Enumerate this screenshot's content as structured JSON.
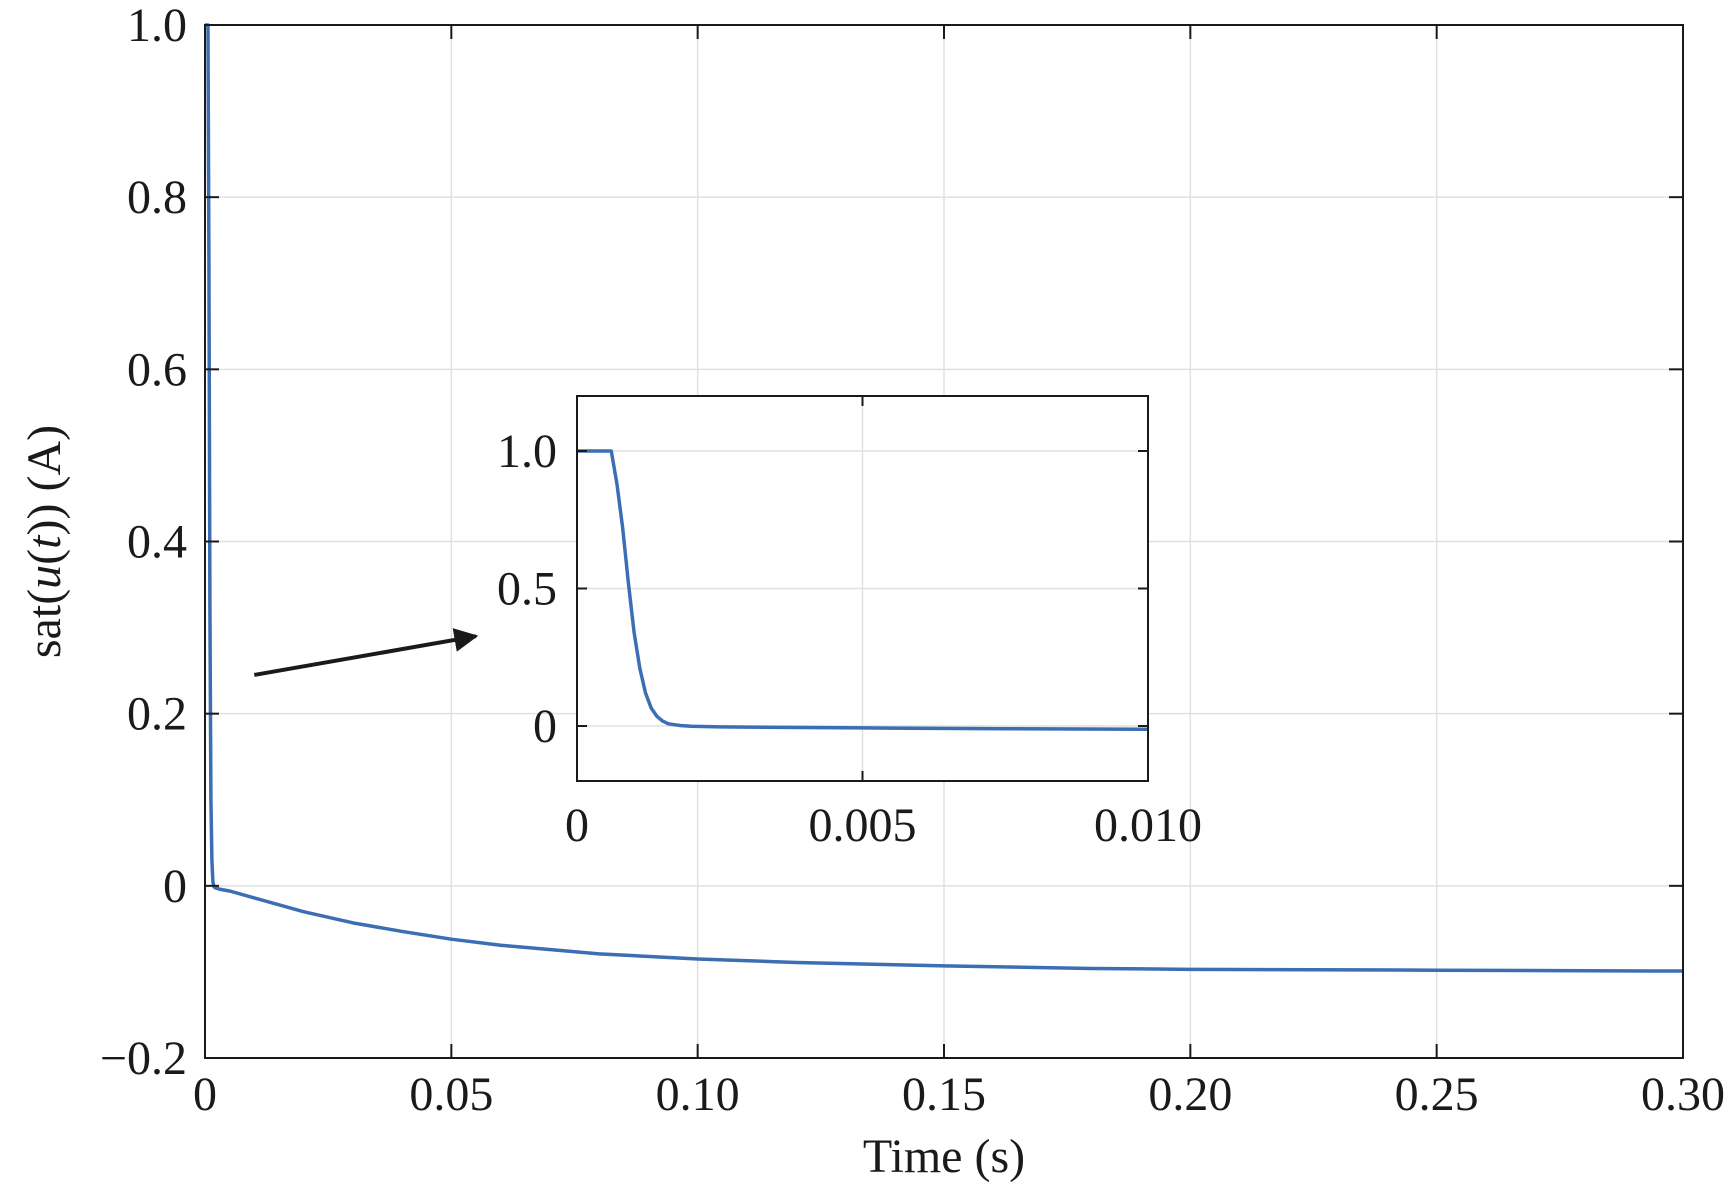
{
  "chart_data": {
    "main": {
      "type": "line",
      "xlabel": "Time (s)",
      "ylabel": {
        "prefix": "sat(",
        "var": "u",
        "open": "(",
        "arg": "t",
        "close": "))",
        "unit": " (A)"
      },
      "xlim": [
        0,
        0.3
      ],
      "ylim": [
        -0.2,
        1.0
      ],
      "xticks": [
        0,
        0.05,
        0.1,
        0.15,
        0.2,
        0.25,
        0.3
      ],
      "xtick_labels": [
        "0",
        "0.05",
        "0.10",
        "0.15",
        "0.20",
        "0.25",
        "0.30"
      ],
      "yticks": [
        -0.2,
        0,
        0.2,
        0.4,
        0.6,
        0.8,
        1.0
      ],
      "ytick_labels": [
        "−0.2",
        "0",
        "0.2",
        "0.4",
        "0.6",
        "0.8",
        "1.0"
      ],
      "grid": true,
      "series": [
        {
          "color": "#3c6eb4",
          "x": [
            0,
            0.0006,
            0.0008,
            0.001,
            0.0012,
            0.0014,
            0.0016,
            0.0018,
            0.002,
            0.0025,
            0.003,
            0.005,
            0.01,
            0.02,
            0.03,
            0.04,
            0.05,
            0.06,
            0.08,
            0.1,
            0.12,
            0.15,
            0.18,
            0.2,
            0.25,
            0.3
          ],
          "y": [
            1.0,
            1.0,
            0.72,
            0.32,
            0.1,
            0.03,
            0.005,
            -0.001,
            -0.002,
            -0.003,
            -0.004,
            -0.006,
            -0.014,
            -0.03,
            -0.043,
            -0.053,
            -0.062,
            -0.069,
            -0.079,
            -0.085,
            -0.089,
            -0.093,
            -0.096,
            -0.097,
            -0.098,
            -0.099
          ]
        }
      ]
    },
    "inset": {
      "type": "line",
      "xlim": [
        0,
        0.01
      ],
      "ylim": [
        -0.2,
        1.2
      ],
      "xticks": [
        0,
        0.005,
        0.01
      ],
      "xtick_labels": [
        "0",
        "0.005",
        "0.010"
      ],
      "yticks": [
        0,
        0.5,
        1.0
      ],
      "ytick_labels": [
        "0",
        "0.5",
        "1.0"
      ],
      "grid": true,
      "series": [
        {
          "color": "#3c6eb4",
          "x": [
            0,
            0.0006,
            0.0007,
            0.0008,
            0.0009,
            0.001,
            0.0011,
            0.0012,
            0.0013,
            0.0014,
            0.0015,
            0.0016,
            0.0018,
            0.002,
            0.0025,
            0.003,
            0.005,
            0.0075,
            0.01
          ],
          "y": [
            1.0,
            1.0,
            0.88,
            0.72,
            0.52,
            0.34,
            0.21,
            0.12,
            0.065,
            0.035,
            0.018,
            0.008,
            0.002,
            -0.001,
            -0.003,
            -0.004,
            -0.007,
            -0.01,
            -0.012
          ]
        }
      ]
    },
    "annotation": {
      "type": "arrow",
      "from": [
        0.01,
        0.245
      ],
      "to": [
        0.055,
        0.29
      ]
    }
  }
}
